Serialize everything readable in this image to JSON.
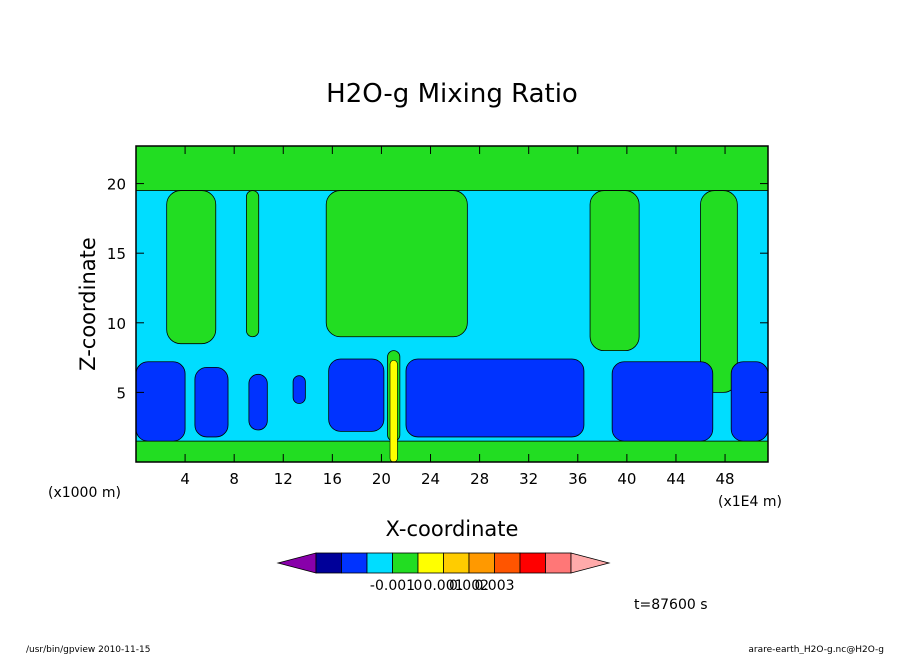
{
  "chart_data": {
    "type": "heatmap",
    "title": "H2O-g Mixing Ratio",
    "xlabel": "X-coordinate",
    "ylabel": "Z-coordinate",
    "x_unit": "(x1E4 m)",
    "y_unit": "(x1000 m)",
    "xlim": [
      0,
      51.5
    ],
    "ylim": [
      0,
      22.7
    ],
    "x_ticks": [
      4,
      8,
      12,
      16,
      20,
      24,
      28,
      32,
      36,
      40,
      44,
      48
    ],
    "y_ticks": [
      5,
      10,
      15,
      20
    ],
    "grid": false,
    "time_label": "t=87600 s",
    "colorbar": {
      "colors": [
        "#8800aa",
        "#000099",
        "#0033ff",
        "#00ddff",
        "#22dd22",
        "#ffff00",
        "#ffcc00",
        "#ff9900",
        "#ff5500",
        "#ff0000",
        "#ff7777",
        "#ffaaaa"
      ],
      "tick_labels": [
        "-0.001",
        "0",
        "0.001",
        "0.002",
        "0.003"
      ],
      "tick_boundaries": [
        3,
        4,
        5,
        6,
        7
      ]
    },
    "regions": {
      "background": "#00ddff",
      "top_band": {
        "color": "#22dd22",
        "z": [
          19.5,
          22.7
        ]
      },
      "bottom_band": {
        "color": "#22dd22",
        "z": [
          0,
          1.5
        ]
      },
      "green_columns": [
        {
          "x": [
            2.5,
            6.5
          ],
          "z": [
            8.5,
            19.5
          ]
        },
        {
          "x": [
            9,
            10
          ],
          "z": [
            9,
            19.5
          ]
        },
        {
          "x": [
            15.5,
            27
          ],
          "z": [
            9,
            19.5
          ]
        },
        {
          "x": [
            37,
            41
          ],
          "z": [
            8,
            19.5
          ]
        },
        {
          "x": [
            46,
            49
          ],
          "z": [
            5,
            19.5
          ]
        },
        {
          "x": [
            20.5,
            21.5
          ],
          "z": [
            1.5,
            8
          ]
        }
      ],
      "blue_blobs": [
        {
          "x": [
            0,
            4
          ],
          "z": [
            1.5,
            7.2
          ]
        },
        {
          "x": [
            4.8,
            7.5
          ],
          "z": [
            1.8,
            6.8
          ]
        },
        {
          "x": [
            9.2,
            10.7
          ],
          "z": [
            2.3,
            6.3
          ]
        },
        {
          "x": [
            12.8,
            13.8
          ],
          "z": [
            4.2,
            6.2
          ]
        },
        {
          "x": [
            15.7,
            20.2
          ],
          "z": [
            2.2,
            7.4
          ]
        },
        {
          "x": [
            22,
            36.5
          ],
          "z": [
            1.8,
            7.4
          ]
        },
        {
          "x": [
            38.8,
            47
          ],
          "z": [
            1.5,
            7.2
          ]
        },
        {
          "x": [
            48.5,
            51.5
          ],
          "z": [
            1.5,
            7.2
          ]
        }
      ],
      "yellow_spikes": [
        {
          "x": [
            20.7,
            21.3
          ],
          "z": [
            0,
            7.3
          ]
        }
      ]
    }
  },
  "footer": {
    "left": "/usr/bin/gpview   2010-11-15",
    "right": "arare-earth_H2O-g.nc@H2O-g"
  }
}
